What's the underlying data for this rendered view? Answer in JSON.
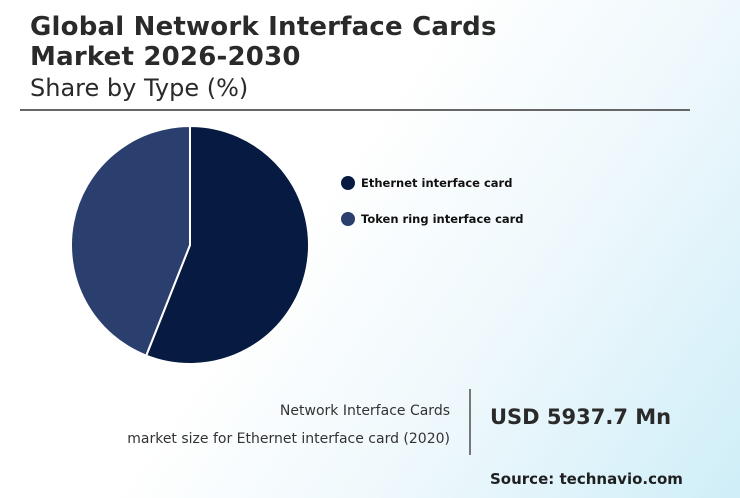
{
  "header": {
    "title_line1": "Global Network Interface Cards",
    "title_line2": "Market 2026-2030",
    "subtitle": "Share by Type (%)"
  },
  "chart_data": {
    "type": "pie",
    "title": "Global Network Interface Cards Market 2026-2030",
    "subtitle": "Share by Type (%)",
    "categories": [
      "Ethernet interface card",
      "Token ring interface card"
    ],
    "values": [
      56,
      44
    ],
    "colors": [
      "#071a42",
      "#2b3f6e"
    ],
    "legend_position": "right"
  },
  "stat": {
    "label_line1": "Network Interface Cards",
    "label_line2": "market size for Ethernet interface card (2020)",
    "value": "USD 5937.7 Mn"
  },
  "source": "Source: technavio.com"
}
